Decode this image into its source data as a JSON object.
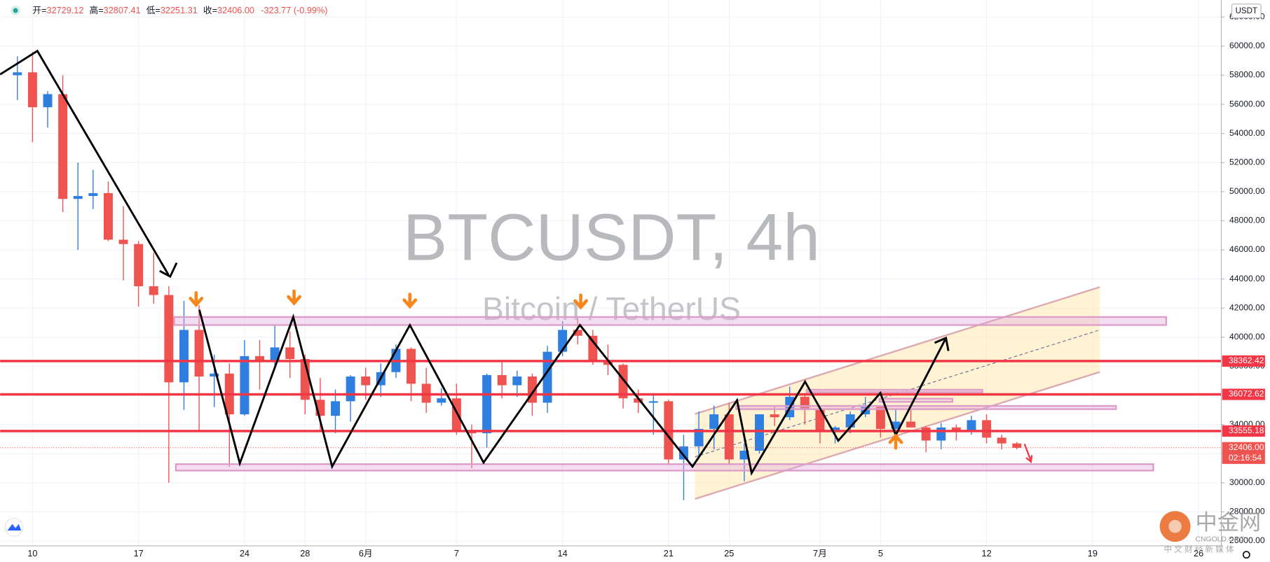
{
  "header": {
    "items": [
      {
        "label": "开=",
        "value": "32729.12"
      },
      {
        "label": "高=",
        "value": "32807.41"
      },
      {
        "label": "低=",
        "value": "32251.31"
      },
      {
        "label": "收=",
        "value": "32406.00"
      }
    ],
    "change": "-323.77 (-0.99%)"
  },
  "logo": {
    "name": "中金网",
    "site": "CNGOLD.ORG",
    "slogan": "中 文 财 经 新 媒 体"
  },
  "chart_data": {
    "type": "candlestick",
    "title": "BTCUSDT, 4h",
    "subtitle": "Bitcoin / TetherUS",
    "currency": "USDT",
    "x": [
      -1,
      0,
      1,
      2,
      3,
      4,
      5,
      6,
      7,
      8,
      9,
      10,
      11,
      12,
      13,
      14,
      15,
      16,
      17,
      18,
      19,
      20,
      21,
      22,
      23,
      24,
      25,
      26,
      27,
      28,
      29,
      30,
      31,
      32,
      33,
      34,
      35,
      36,
      37,
      38,
      39,
      40,
      41,
      42,
      43,
      44,
      45,
      46,
      47,
      48,
      49,
      50,
      51,
      52,
      53,
      54,
      55,
      56,
      57,
      58,
      59,
      60,
      61,
      62,
      63,
      64,
      65
    ],
    "open": [
      58000,
      58200,
      55800,
      56700,
      49500,
      49700,
      49900,
      46700,
      46400,
      43500,
      42900,
      36900,
      40500,
      37300,
      37500,
      34700,
      38700,
      38400,
      39300,
      38500,
      35700,
      34600,
      35600,
      37300,
      36700,
      37600,
      39200,
      36800,
      35500,
      35800,
      33600,
      33400,
      37400,
      36700,
      37300,
      35500,
      39000,
      40500,
      40100,
      38300,
      38100,
      35800,
      35500,
      35600,
      31600,
      32500,
      33700,
      34700,
      31600,
      32200,
      34700,
      34500,
      35900,
      35000,
      33500,
      33800,
      34700,
      35300,
      33700,
      34200,
      33800,
      32900,
      33800,
      33500,
      34300,
      33100,
      32700
    ],
    "high": [
      59300,
      59600,
      56900,
      58000,
      52000,
      51500,
      50700,
      49000,
      46600,
      45800,
      43500,
      42500,
      42200,
      38800,
      38200,
      39800,
      39800,
      40800,
      40400,
      38800,
      37200,
      36400,
      37400,
      37900,
      38200,
      39500,
      39300,
      37900,
      36500,
      36800,
      34000,
      37500,
      38400,
      37700,
      37500,
      39400,
      41100,
      41300,
      40500,
      39500,
      38200,
      36400,
      36100,
      35700,
      33300,
      34900,
      35300,
      35500,
      32700,
      34700,
      35300,
      36600,
      36000,
      35000,
      33900,
      34900,
      35900,
      35300,
      35100,
      35000,
      33900,
      34100,
      34000,
      34600,
      34700,
      33300,
      32800
    ],
    "low": [
      56300,
      53400,
      54400,
      48600,
      46000,
      48800,
      46600,
      43900,
      42100,
      42300,
      30000,
      35000,
      33500,
      35200,
      31100,
      34600,
      36400,
      37800,
      37200,
      34700,
      33600,
      33400,
      34200,
      35700,
      35900,
      37200,
      35600,
      34800,
      35300,
      33300,
      31000,
      32400,
      35800,
      35900,
      34600,
      34800,
      38700,
      39500,
      38100,
      37400,
      35100,
      34800,
      33300,
      31300,
      28800,
      31700,
      32300,
      31300,
      30100,
      32000,
      33900,
      34300,
      34000,
      32700,
      32700,
      33400,
      34500,
      33100,
      33500,
      33800,
      32100,
      32300,
      32900,
      33300,
      32700,
      32300,
      32300
    ],
    "close": [
      58200,
      55800,
      56700,
      49500,
      49700,
      49900,
      46700,
      46400,
      43500,
      42900,
      36900,
      40500,
      37300,
      37500,
      34700,
      38700,
      38400,
      39300,
      38500,
      35700,
      34600,
      35600,
      37300,
      36700,
      37600,
      39200,
      36800,
      35500,
      35800,
      33600,
      33400,
      37400,
      36700,
      37300,
      35500,
      39000,
      40500,
      40100,
      38300,
      38100,
      35800,
      35500,
      35600,
      31600,
      32500,
      33700,
      34700,
      31600,
      32200,
      34700,
      34500,
      35900,
      35000,
      33500,
      33800,
      34700,
      35300,
      33700,
      34200,
      33800,
      32900,
      33800,
      33500,
      34300,
      33100,
      32700,
      32400
    ],
    "up_color": "#2f7fe0",
    "down_color": "#ef5350",
    "xlim": [
      -2.14,
      78.5
    ],
    "ylim": [
      25667,
      63167
    ],
    "xticks": [
      {
        "value": 0,
        "label": "10"
      },
      {
        "value": 7,
        "label": "17"
      },
      {
        "value": 14,
        "label": "24"
      },
      {
        "value": 18,
        "label": "28"
      },
      {
        "value": 22,
        "label": "6月"
      },
      {
        "value": 28,
        "label": "7"
      },
      {
        "value": 35,
        "label": "14"
      },
      {
        "value": 42,
        "label": "21"
      },
      {
        "value": 46,
        "label": "25"
      },
      {
        "value": 52,
        "label": "7月"
      },
      {
        "value": 56,
        "label": "5"
      },
      {
        "value": 63,
        "label": "12"
      },
      {
        "value": 70,
        "label": "19"
      },
      {
        "value": 77,
        "label": "26"
      }
    ],
    "yticks": [
      {
        "value": 26000,
        "label": "26000.00"
      },
      {
        "value": 28000,
        "label": "28000.00"
      },
      {
        "value": 30000,
        "label": "30000.00"
      },
      {
        "value": 32000,
        "label": "32000.00"
      },
      {
        "value": 34000,
        "label": "34000.00"
      },
      {
        "value": 36000,
        "label": "36000.00"
      },
      {
        "value": 38000,
        "label": "38000.00"
      },
      {
        "value": 40000,
        "label": "40000.00"
      },
      {
        "value": 42000,
        "label": "42000.00"
      },
      {
        "value": 44000,
        "label": "44000.00"
      },
      {
        "value": 46000,
        "label": "46000.00"
      },
      {
        "value": 48000,
        "label": "48000.00"
      },
      {
        "value": 50000,
        "label": "50000.00"
      },
      {
        "value": 52000,
        "label": "52000.00"
      },
      {
        "value": 54000,
        "label": "54000.00"
      },
      {
        "value": 56000,
        "label": "56000.00"
      },
      {
        "value": 58000,
        "label": "58000.00"
      },
      {
        "value": 60000,
        "label": "60000.00"
      },
      {
        "value": 62000,
        "label": "62000.00"
      }
    ],
    "grid": true,
    "price_lines": [
      38362.42,
      36072.62,
      33555.18
    ],
    "line_color": "#f23645",
    "last_price": {
      "value": 32406,
      "label": "32406.00"
    },
    "countdown": "02:16:54"
  }
}
